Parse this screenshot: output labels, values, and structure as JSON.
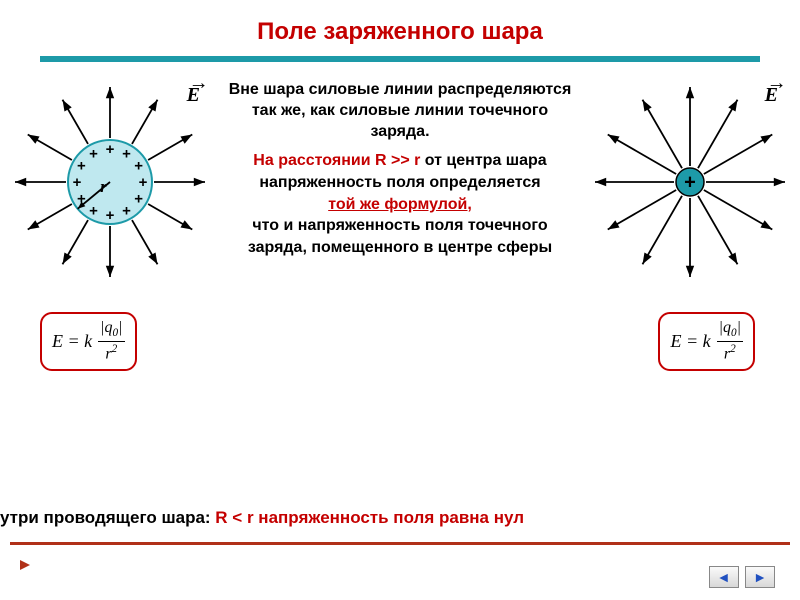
{
  "colors": {
    "title": "#c40000",
    "hr": "#1d9aa8",
    "hr_bottom": "#b03018",
    "text_black": "#000000",
    "text_red": "#c40000",
    "formula_border": "#c40000",
    "sphere_fill": "#bfe8ef",
    "sphere_stroke": "#1d9aa8",
    "point_fill": "#1d9aa8",
    "nav_arrow": "#2050c0",
    "bullet": "#b03018"
  },
  "title": "Поле заряженного шара",
  "text": {
    "p1": "Вне шара силовые линии распределяются так же, как силовые линии точечного заряда.",
    "p2_a": "На расстоянии R >> r",
    "p2_b": " от центра шара напряженность поля определяется",
    "p2_c": "той же формулой,",
    "p2_d": "что и напряженность поля точечного заряда, помещенного в центре сферы"
  },
  "bottom": {
    "left": "утри проводящего шара:  ",
    "mid": "R < r",
    "right": "  напряженность поля равна нул"
  },
  "formula": {
    "lhs": "E  = k",
    "num": "|q",
    "num_sub": "0",
    "num_end": "|",
    "den": "r",
    "den_sup": "2"
  },
  "labels": {
    "E": "E",
    "r": "r",
    "plus": "+"
  },
  "diagram": {
    "n_rays": 12,
    "ray_inner": 38,
    "ray_outer": 95,
    "arrow_size": 7,
    "sphere_r": 42,
    "point_r": 14,
    "stroke_width": 1.8
  },
  "nav": {
    "left": "◄",
    "right": "►"
  }
}
